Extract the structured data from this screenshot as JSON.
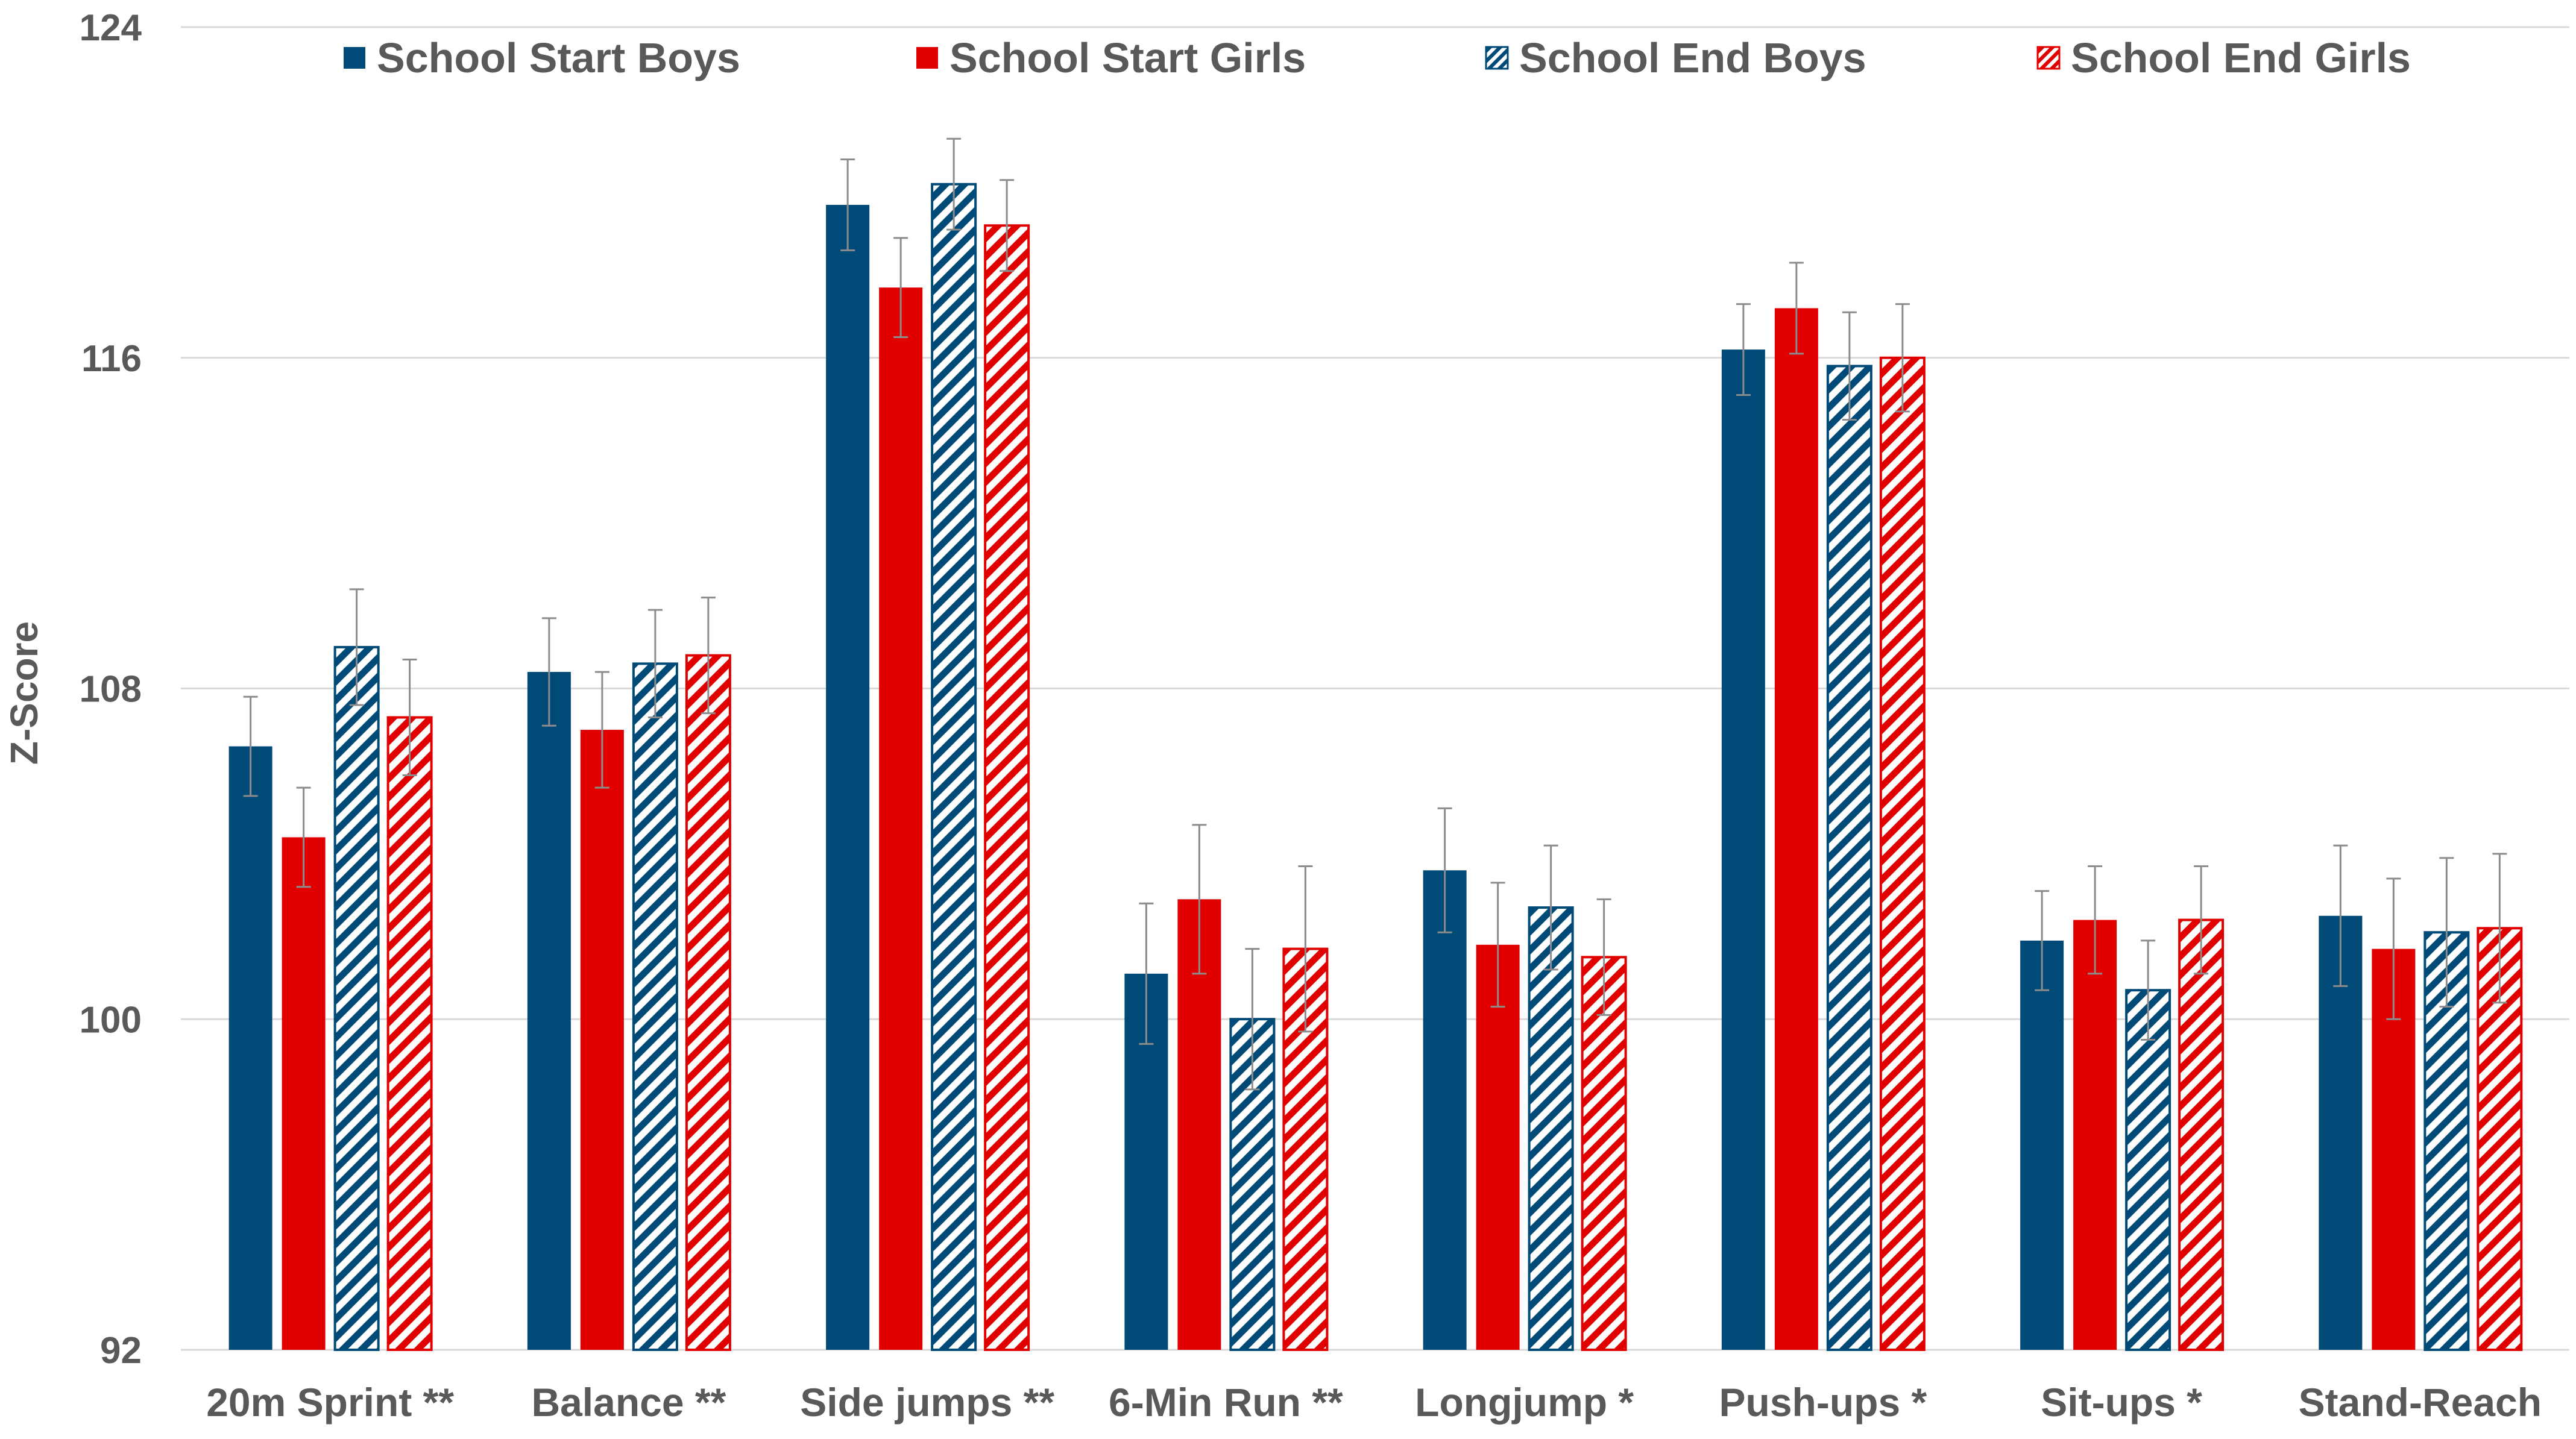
{
  "chart_data": {
    "type": "bar",
    "title": "",
    "xlabel": "",
    "ylabel": "Z-Score",
    "ylim": [
      92,
      124
    ],
    "yticks": [
      92,
      100,
      108,
      116,
      124
    ],
    "grid": true,
    "legend_position": "top",
    "categories": [
      "20m Sprint **",
      "Balance **",
      "Side jumps **",
      "6-Min Run **",
      "Longjump *",
      "Push-ups *",
      "Sit-ups *",
      "Stand-Reach"
    ],
    "series": [
      {
        "name": "School Start Boys",
        "color": "#004A78",
        "pattern": "solid",
        "values": [
          106.6,
          108.4,
          119.7,
          101.1,
          103.6,
          116.2,
          101.9,
          102.5
        ],
        "errors": [
          1.2,
          1.3,
          1.1,
          1.7,
          1.5,
          1.1,
          1.2,
          1.7
        ]
      },
      {
        "name": "School Start Girls",
        "color": "#E00000",
        "pattern": "solid",
        "values": [
          104.4,
          107.0,
          117.7,
          102.9,
          101.8,
          117.2,
          102.4,
          101.7
        ],
        "errors": [
          1.2,
          1.4,
          1.2,
          1.8,
          1.5,
          1.1,
          1.3,
          1.7
        ]
      },
      {
        "name": "School End Boys",
        "color": "#004A78",
        "pattern": "hatched",
        "values": [
          109.0,
          108.6,
          120.2,
          100.0,
          102.7,
          115.8,
          100.7,
          102.1
        ],
        "errors": [
          1.4,
          1.3,
          1.1,
          1.7,
          1.5,
          1.3,
          1.2,
          1.8
        ]
      },
      {
        "name": "School End Girls",
        "color": "#E00000",
        "pattern": "hatched",
        "values": [
          107.3,
          108.8,
          119.2,
          101.7,
          101.5,
          116.0,
          102.4,
          102.2
        ],
        "errors": [
          1.4,
          1.4,
          1.1,
          2.0,
          1.4,
          1.3,
          1.3,
          1.8
        ]
      }
    ]
  }
}
